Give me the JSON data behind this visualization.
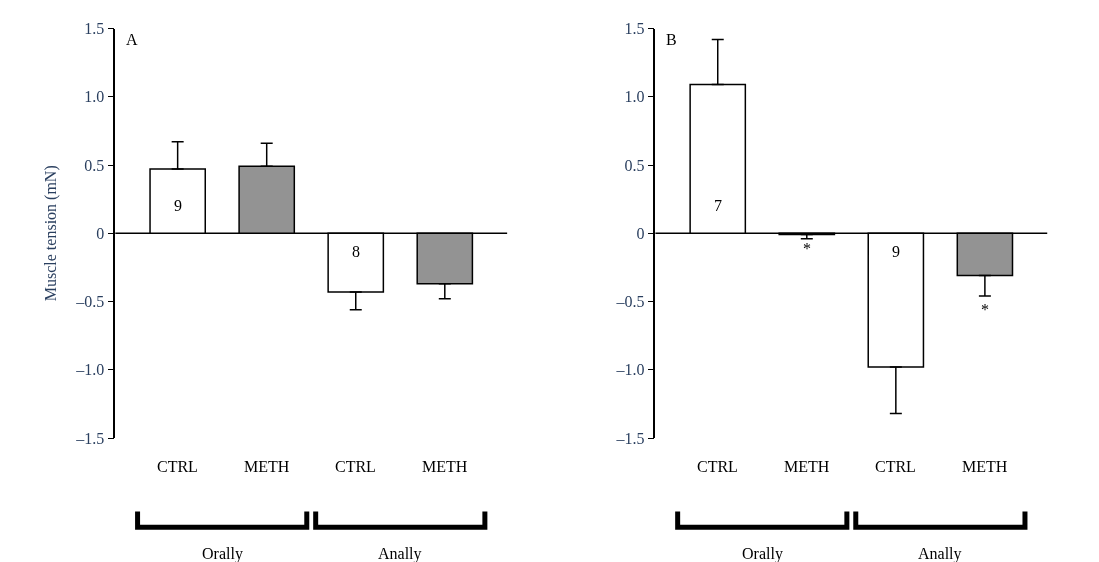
{
  "chart_data": [
    {
      "type": "bar",
      "ylabel": "Muscle tension (mN)",
      "categories": [
        "CTRL",
        "METH",
        "CTRL",
        "METH"
      ],
      "values": [
        0.47,
        0.49,
        -0.43,
        -0.37
      ],
      "colors": [
        "#ffffff",
        "#939393",
        "#ffffff",
        "#939393"
      ],
      "errors": [
        [
          0.47,
          0.67
        ],
        [
          0.49,
          0.66
        ],
        [
          -0.56,
          -0.43
        ],
        [
          -0.48,
          -0.37
        ]
      ],
      "ylim": [
        -1.5,
        1.5
      ],
      "yticks": [
        {
          "value": -1.5,
          "label": "–1.5"
        },
        {
          "value": -1.0,
          "label": "–1.0"
        },
        {
          "value": -0.5,
          "label": "–0.5"
        },
        0,
        {
          "value": 0.5,
          "label": "0.5"
        },
        {
          "value": 1.0,
          "label": "1.0"
        },
        {
          "value": 1.5,
          "label": "1.5"
        }
      ],
      "grid": false,
      "legend": false,
      "ref_lines": [
        {
          "axis": "y",
          "value": 0,
          "color": "#000000"
        }
      ],
      "annotations": [
        "A",
        "Orally",
        "Anally",
        "9",
        "8"
      ]
    },
    {
      "type": "bar",
      "categories": [
        "CTRL",
        "METH",
        "CTRL",
        "METH"
      ],
      "values": [
        1.09,
        -0.01,
        -0.98,
        -0.31
      ],
      "colors": [
        "#ffffff",
        "#939393",
        "#ffffff",
        "#939393"
      ],
      "errors": [
        [
          1.09,
          1.42
        ],
        [
          -0.04,
          -0.01
        ],
        [
          -1.32,
          -0.98
        ],
        [
          -0.46,
          -0.31
        ]
      ],
      "ylim": [
        -1.5,
        1.5
      ],
      "yticks": [
        {
          "value": -1.5,
          "label": "–1.5"
        },
        {
          "value": -1.0,
          "label": "–1.0"
        },
        {
          "value": -0.5,
          "label": "–0.5"
        },
        0,
        {
          "value": 0.5,
          "label": "0.5"
        },
        {
          "value": 1.0,
          "label": "1.0"
        },
        {
          "value": 1.5,
          "label": "1.5"
        }
      ],
      "grid": false,
      "legend": false,
      "ref_lines": [
        {
          "axis": "y",
          "value": 0,
          "color": "#000000"
        }
      ],
      "annotations": [
        "B",
        "Orally",
        "Anally",
        "7",
        "*",
        "9",
        "*"
      ]
    }
  ]
}
